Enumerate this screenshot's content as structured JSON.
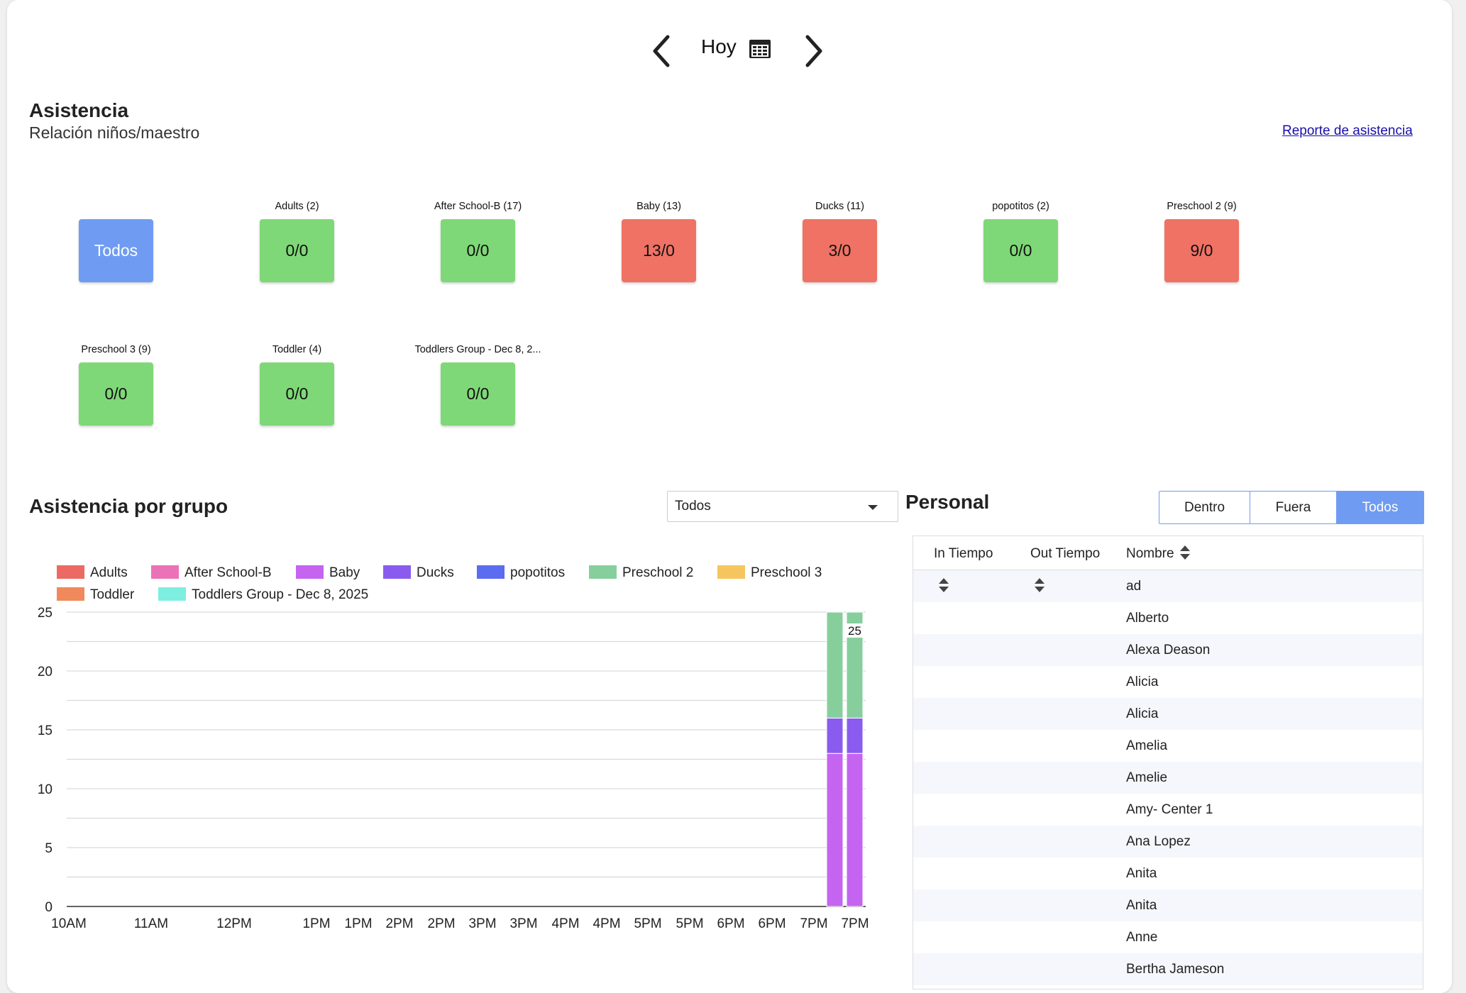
{
  "nav": {
    "date_label": "Hoy",
    "prev_icon": "chevron-left-icon",
    "next_icon": "chevron-right-icon",
    "calendar_icon": "calendar-icon"
  },
  "attendance": {
    "title": "Asistencia",
    "subtitle": "Relación niños/maestro",
    "report_link": "Reporte de asistencia",
    "groups": [
      {
        "label": "",
        "value": "Todos",
        "status": "blue"
      },
      {
        "label": "Adults (2)",
        "value": "0/0",
        "status": "green"
      },
      {
        "label": "After School-B (17)",
        "value": "0/0",
        "status": "green"
      },
      {
        "label": "Baby (13)",
        "value": "13/0",
        "status": "red"
      },
      {
        "label": "Ducks (11)",
        "value": "3/0",
        "status": "red"
      },
      {
        "label": "popotitos (2)",
        "value": "0/0",
        "status": "green"
      },
      {
        "label": "Preschool 2 (9)",
        "value": "9/0",
        "status": "red"
      },
      {
        "label": "Preschool 3 (9)",
        "value": "0/0",
        "status": "green"
      },
      {
        "label": "Toddler (4)",
        "value": "0/0",
        "status": "green"
      },
      {
        "label": "Toddlers Group - Dec 8, 2...",
        "value": "0/0",
        "status": "green"
      }
    ],
    "colors": {
      "green": "#7fd877",
      "red": "#ef7264",
      "blue": "#6f9cf2"
    }
  },
  "by_group": {
    "title": "Asistencia por grupo",
    "select_value": "Todos"
  },
  "chart_data": {
    "type": "bar",
    "stacked": true,
    "title": "",
    "xlabel": "",
    "ylabel": "",
    "ylim": [
      0,
      25
    ],
    "yticks": [
      0,
      5,
      10,
      15,
      20,
      25
    ],
    "grid": true,
    "legend_position": "top-left",
    "categories": [
      "10AM",
      "11AM",
      "12PM",
      "1PM",
      "1PM",
      "2PM",
      "2PM",
      "3PM",
      "3PM",
      "4PM",
      "4PM",
      "5PM",
      "5PM",
      "6PM",
      "6PM",
      "7PM",
      "7PM"
    ],
    "series": [
      {
        "name": "Adults",
        "color": "#ec6a63",
        "values": [
          0,
          0,
          0,
          0,
          0,
          0,
          0,
          0,
          0,
          0,
          0,
          0,
          0,
          0,
          0,
          0,
          0
        ]
      },
      {
        "name": "After School-B",
        "color": "#ec72b8",
        "values": [
          0,
          0,
          0,
          0,
          0,
          0,
          0,
          0,
          0,
          0,
          0,
          0,
          0,
          0,
          0,
          0,
          0
        ]
      },
      {
        "name": "Baby",
        "color": "#c464f0",
        "values": [
          0,
          0,
          0,
          0,
          0,
          0,
          0,
          0,
          0,
          0,
          0,
          0,
          0,
          0,
          0,
          13,
          13
        ]
      },
      {
        "name": "Ducks",
        "color": "#8a5bef",
        "values": [
          0,
          0,
          0,
          0,
          0,
          0,
          0,
          0,
          0,
          0,
          0,
          0,
          0,
          0,
          0,
          3,
          3
        ]
      },
      {
        "name": "popotitos",
        "color": "#5b6cf0",
        "values": [
          0,
          0,
          0,
          0,
          0,
          0,
          0,
          0,
          0,
          0,
          0,
          0,
          0,
          0,
          0,
          0,
          0
        ]
      },
      {
        "name": "Preschool 2",
        "color": "#86cf9c",
        "values": [
          0,
          0,
          0,
          0,
          0,
          0,
          0,
          0,
          0,
          0,
          0,
          0,
          0,
          0,
          0,
          9,
          9
        ]
      },
      {
        "name": "Preschool 3",
        "color": "#f6c65e",
        "values": [
          0,
          0,
          0,
          0,
          0,
          0,
          0,
          0,
          0,
          0,
          0,
          0,
          0,
          0,
          0,
          0,
          0
        ]
      },
      {
        "name": "Toddler",
        "color": "#f0895b",
        "values": [
          0,
          0,
          0,
          0,
          0,
          0,
          0,
          0,
          0,
          0,
          0,
          0,
          0,
          0,
          0,
          0,
          0
        ]
      },
      {
        "name": "Toddlers Group - Dec 8, 2025",
        "color": "#7eeee0",
        "values": [
          0,
          0,
          0,
          0,
          0,
          0,
          0,
          0,
          0,
          0,
          0,
          0,
          0,
          0,
          0,
          0,
          0
        ]
      }
    ],
    "data_labels": [
      {
        "index": 16,
        "text": "25"
      }
    ]
  },
  "staff": {
    "title": "Personal",
    "filters": [
      {
        "label": "Dentro",
        "active": false
      },
      {
        "label": "Fuera",
        "active": false
      },
      {
        "label": "Todos",
        "active": true
      }
    ],
    "columns": [
      "In Tiempo",
      "Out Tiempo",
      "Nombre"
    ],
    "rows": [
      "ad",
      "Alberto",
      "Alexa Deason",
      "Alicia",
      "Alicia",
      "Amelia",
      "Amelie",
      "Amy- Center 1",
      "Ana Lopez",
      "Anita",
      "Anita",
      "Anne",
      "Bertha Jameson"
    ]
  }
}
